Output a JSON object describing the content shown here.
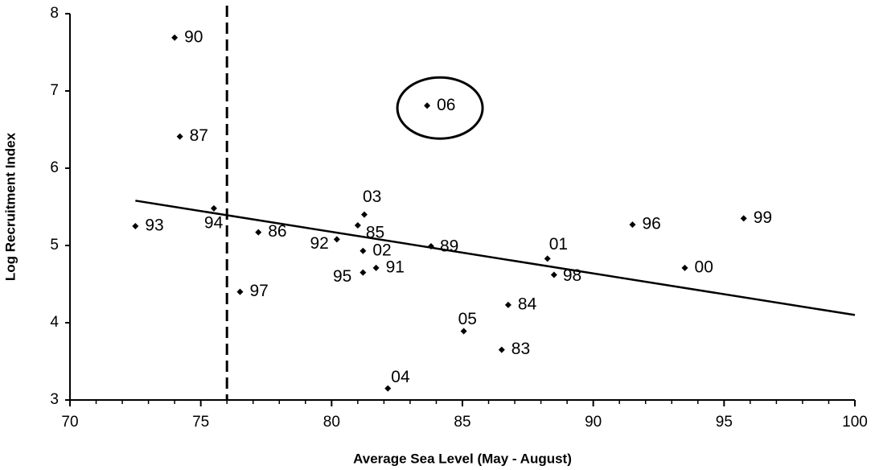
{
  "chart_data": {
    "type": "scatter",
    "x_label": "Average Sea Level (May - August)",
    "y_label": "Log Recruitment Index",
    "xlim": [
      70,
      100
    ],
    "xticks": [
      70,
      75,
      80,
      85,
      90,
      95,
      100
    ],
    "ylim": [
      3,
      8
    ],
    "yticks": [
      3,
      4,
      5,
      6,
      7,
      8
    ],
    "color": "#000000",
    "x": [
      74.0,
      74.2,
      72.5,
      75.5,
      76.5,
      77.2,
      80.2,
      81.25,
      81.0,
      81.2,
      81.2,
      81.7,
      83.65,
      83.8,
      82.15,
      85.05,
      86.5,
      86.75,
      88.25,
      88.5,
      91.5,
      95.75,
      93.5
    ],
    "values": [
      7.69,
      6.41,
      5.25,
      5.48,
      4.4,
      5.17,
      5.08,
      5.4,
      5.26,
      4.93,
      4.65,
      4.71,
      6.81,
      4.99,
      3.15,
      3.89,
      3.65,
      4.23,
      4.83,
      4.62,
      5.27,
      5.35,
      4.71
    ],
    "labels": [
      "90",
      "87",
      "93",
      "94",
      "97",
      "86",
      "92",
      "03",
      "85",
      "02",
      "95",
      "91",
      "06",
      "89",
      "04",
      "05",
      "83",
      "84",
      "01",
      "98",
      "96",
      "99",
      "00"
    ],
    "trendline": {
      "x": [
        72.5,
        100
      ],
      "y": [
        5.58,
        4.1
      ]
    },
    "reference_x": 76,
    "highlight": "06"
  }
}
